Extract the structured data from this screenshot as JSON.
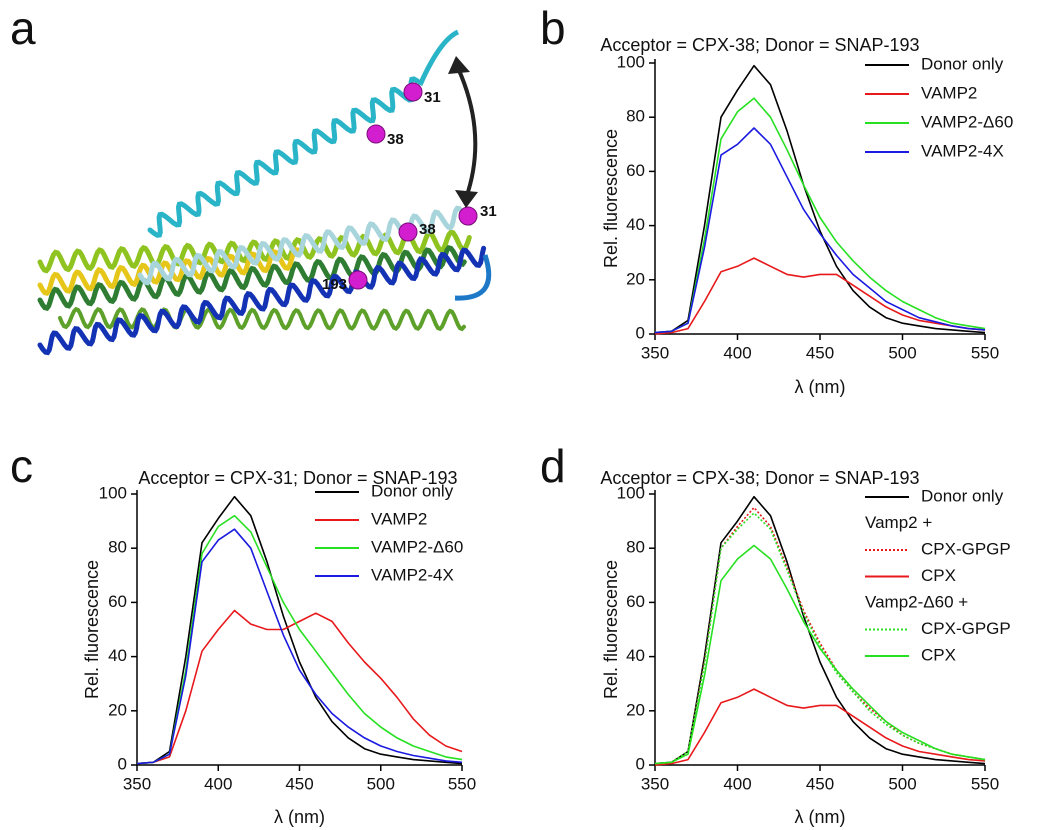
{
  "structure": {
    "panel": "a",
    "sites": [
      "31",
      "38",
      "31",
      "38",
      "193"
    ]
  },
  "chart_data": [
    {
      "type": "line",
      "panel": "b",
      "title": "Acceptor = CPX-38; Donor = SNAP-193",
      "x_label": "λ (nm)",
      "y_label": "Rel. fluorescence",
      "x": [
        350,
        360,
        370,
        380,
        390,
        400,
        410,
        420,
        430,
        440,
        450,
        460,
        470,
        480,
        490,
        500,
        510,
        520,
        530,
        540,
        550
      ],
      "xlim": [
        350,
        550
      ],
      "xticks": [
        350,
        400,
        450,
        500,
        550
      ],
      "ylim": [
        0,
        100
      ],
      "yticks": [
        0,
        20,
        40,
        60,
        80,
        100
      ],
      "series": [
        {
          "name": "Donor only",
          "color": "#000000",
          "values": [
            0.5,
            1,
            5,
            40,
            80,
            90,
            99,
            92,
            75,
            55,
            38,
            25,
            16,
            10,
            6,
            4,
            3,
            2,
            1.5,
            1,
            0.5
          ]
        },
        {
          "name": "VAMP2",
          "color": "#e8191b",
          "values": [
            0,
            0.5,
            2,
            12,
            23,
            25,
            28,
            25,
            22,
            21,
            22,
            22,
            18,
            14,
            10,
            7,
            5,
            4,
            3,
            2,
            1.5
          ]
        },
        {
          "name": "VAMP2-Δ60",
          "color": "#27e021",
          "values": [
            0.5,
            1,
            4,
            35,
            72,
            82,
            87,
            80,
            68,
            55,
            43,
            34,
            27,
            21,
            16,
            12,
            9,
            6,
            4,
            3,
            2
          ]
        },
        {
          "name": "VAMP2-4X",
          "color": "#1a1ae0",
          "values": [
            0.5,
            1,
            4,
            32,
            66,
            70,
            76,
            70,
            58,
            46,
            37,
            29,
            22,
            17,
            12,
            9,
            6,
            4.5,
            3,
            2,
            1.5
          ]
        }
      ]
    },
    {
      "type": "line",
      "panel": "c",
      "title": "Acceptor = CPX-31; Donor = SNAP-193",
      "x_label": "λ (nm)",
      "y_label": "Rel. fluorescence",
      "x": [
        350,
        360,
        370,
        380,
        390,
        400,
        410,
        420,
        430,
        440,
        450,
        460,
        470,
        480,
        490,
        500,
        510,
        520,
        530,
        540,
        550
      ],
      "xlim": [
        350,
        550
      ],
      "xticks": [
        350,
        400,
        450,
        500,
        550
      ],
      "ylim": [
        0,
        100
      ],
      "yticks": [
        0,
        20,
        40,
        60,
        80,
        100
      ],
      "series": [
        {
          "name": "Donor only",
          "color": "#000000",
          "values": [
            0.5,
            1,
            5,
            40,
            82,
            91,
            99,
            92,
            75,
            55,
            38,
            25,
            16,
            10,
            6,
            4,
            3,
            2,
            1.5,
            1,
            0.5
          ]
        },
        {
          "name": "VAMP2",
          "color": "#e8191b",
          "values": [
            0.5,
            1,
            3,
            20,
            42,
            50,
            57,
            52,
            50,
            50,
            53,
            56,
            53,
            45,
            38,
            32,
            25,
            17,
            11,
            7,
            5
          ]
        },
        {
          "name": "VAMP2-Δ60",
          "color": "#27e021",
          "values": [
            0.5,
            1,
            4,
            35,
            78,
            88,
            92,
            86,
            73,
            60,
            50,
            42,
            34,
            26,
            19,
            14,
            10,
            7,
            5,
            3,
            2
          ]
        },
        {
          "name": "VAMP2-4X",
          "color": "#1a1ae0",
          "values": [
            0.5,
            1,
            4,
            33,
            75,
            83,
            87,
            80,
            64,
            48,
            35,
            26,
            19,
            14,
            10,
            7,
            5,
            3.5,
            2.5,
            1.5,
            1
          ]
        }
      ]
    },
    {
      "type": "line",
      "panel": "d",
      "title": "Acceptor = CPX-38; Donor = SNAP-193",
      "x_label": "λ (nm)",
      "y_label": "Rel. fluorescence",
      "x": [
        350,
        360,
        370,
        380,
        390,
        400,
        410,
        420,
        430,
        440,
        450,
        460,
        470,
        480,
        490,
        500,
        510,
        520,
        530,
        540,
        550
      ],
      "xlim": [
        350,
        550
      ],
      "xticks": [
        350,
        400,
        450,
        500,
        550
      ],
      "ylim": [
        0,
        100
      ],
      "yticks": [
        0,
        20,
        40,
        60,
        80,
        100
      ],
      "series": [
        {
          "name": "Donor only",
          "color": "#000000",
          "values": [
            0.5,
            1,
            5,
            40,
            82,
            90,
            99,
            92,
            75,
            55,
            38,
            25,
            16,
            10,
            6,
            4,
            3,
            2,
            1.5,
            1,
            0.5
          ]
        },
        {
          "name": "CPX-GPGP",
          "group": "Vamp2 +",
          "dash": "dotted",
          "color": "#e8191b",
          "values": [
            0.5,
            1,
            5,
            38,
            80,
            88,
            95,
            88,
            73,
            57,
            45,
            35,
            27,
            21,
            16,
            11,
            8,
            6,
            4,
            3,
            2
          ]
        },
        {
          "name": "CPX",
          "group": "Vamp2 +",
          "color": "#e8191b",
          "values": [
            0,
            0.5,
            2,
            12,
            23,
            25,
            28,
            25,
            22,
            21,
            22,
            22,
            18,
            14,
            10,
            7,
            5,
            4,
            3,
            2,
            1.5
          ]
        },
        {
          "name": "CPX-GPGP",
          "group": "Vamp2-Δ60 +",
          "dash": "dotted",
          "color": "#27e021",
          "values": [
            0.5,
            1,
            5,
            37,
            80,
            87,
            93,
            87,
            72,
            56,
            44,
            34,
            27,
            20,
            15,
            11,
            8,
            6,
            4,
            3,
            2
          ]
        },
        {
          "name": "CPX",
          "group": "Vamp2-Δ60 +",
          "color": "#27e021",
          "values": [
            0.5,
            1,
            4,
            33,
            68,
            76,
            81,
            76,
            65,
            53,
            43,
            35,
            28,
            22,
            16,
            12,
            9,
            6,
            4,
            3,
            2
          ]
        }
      ]
    }
  ]
}
